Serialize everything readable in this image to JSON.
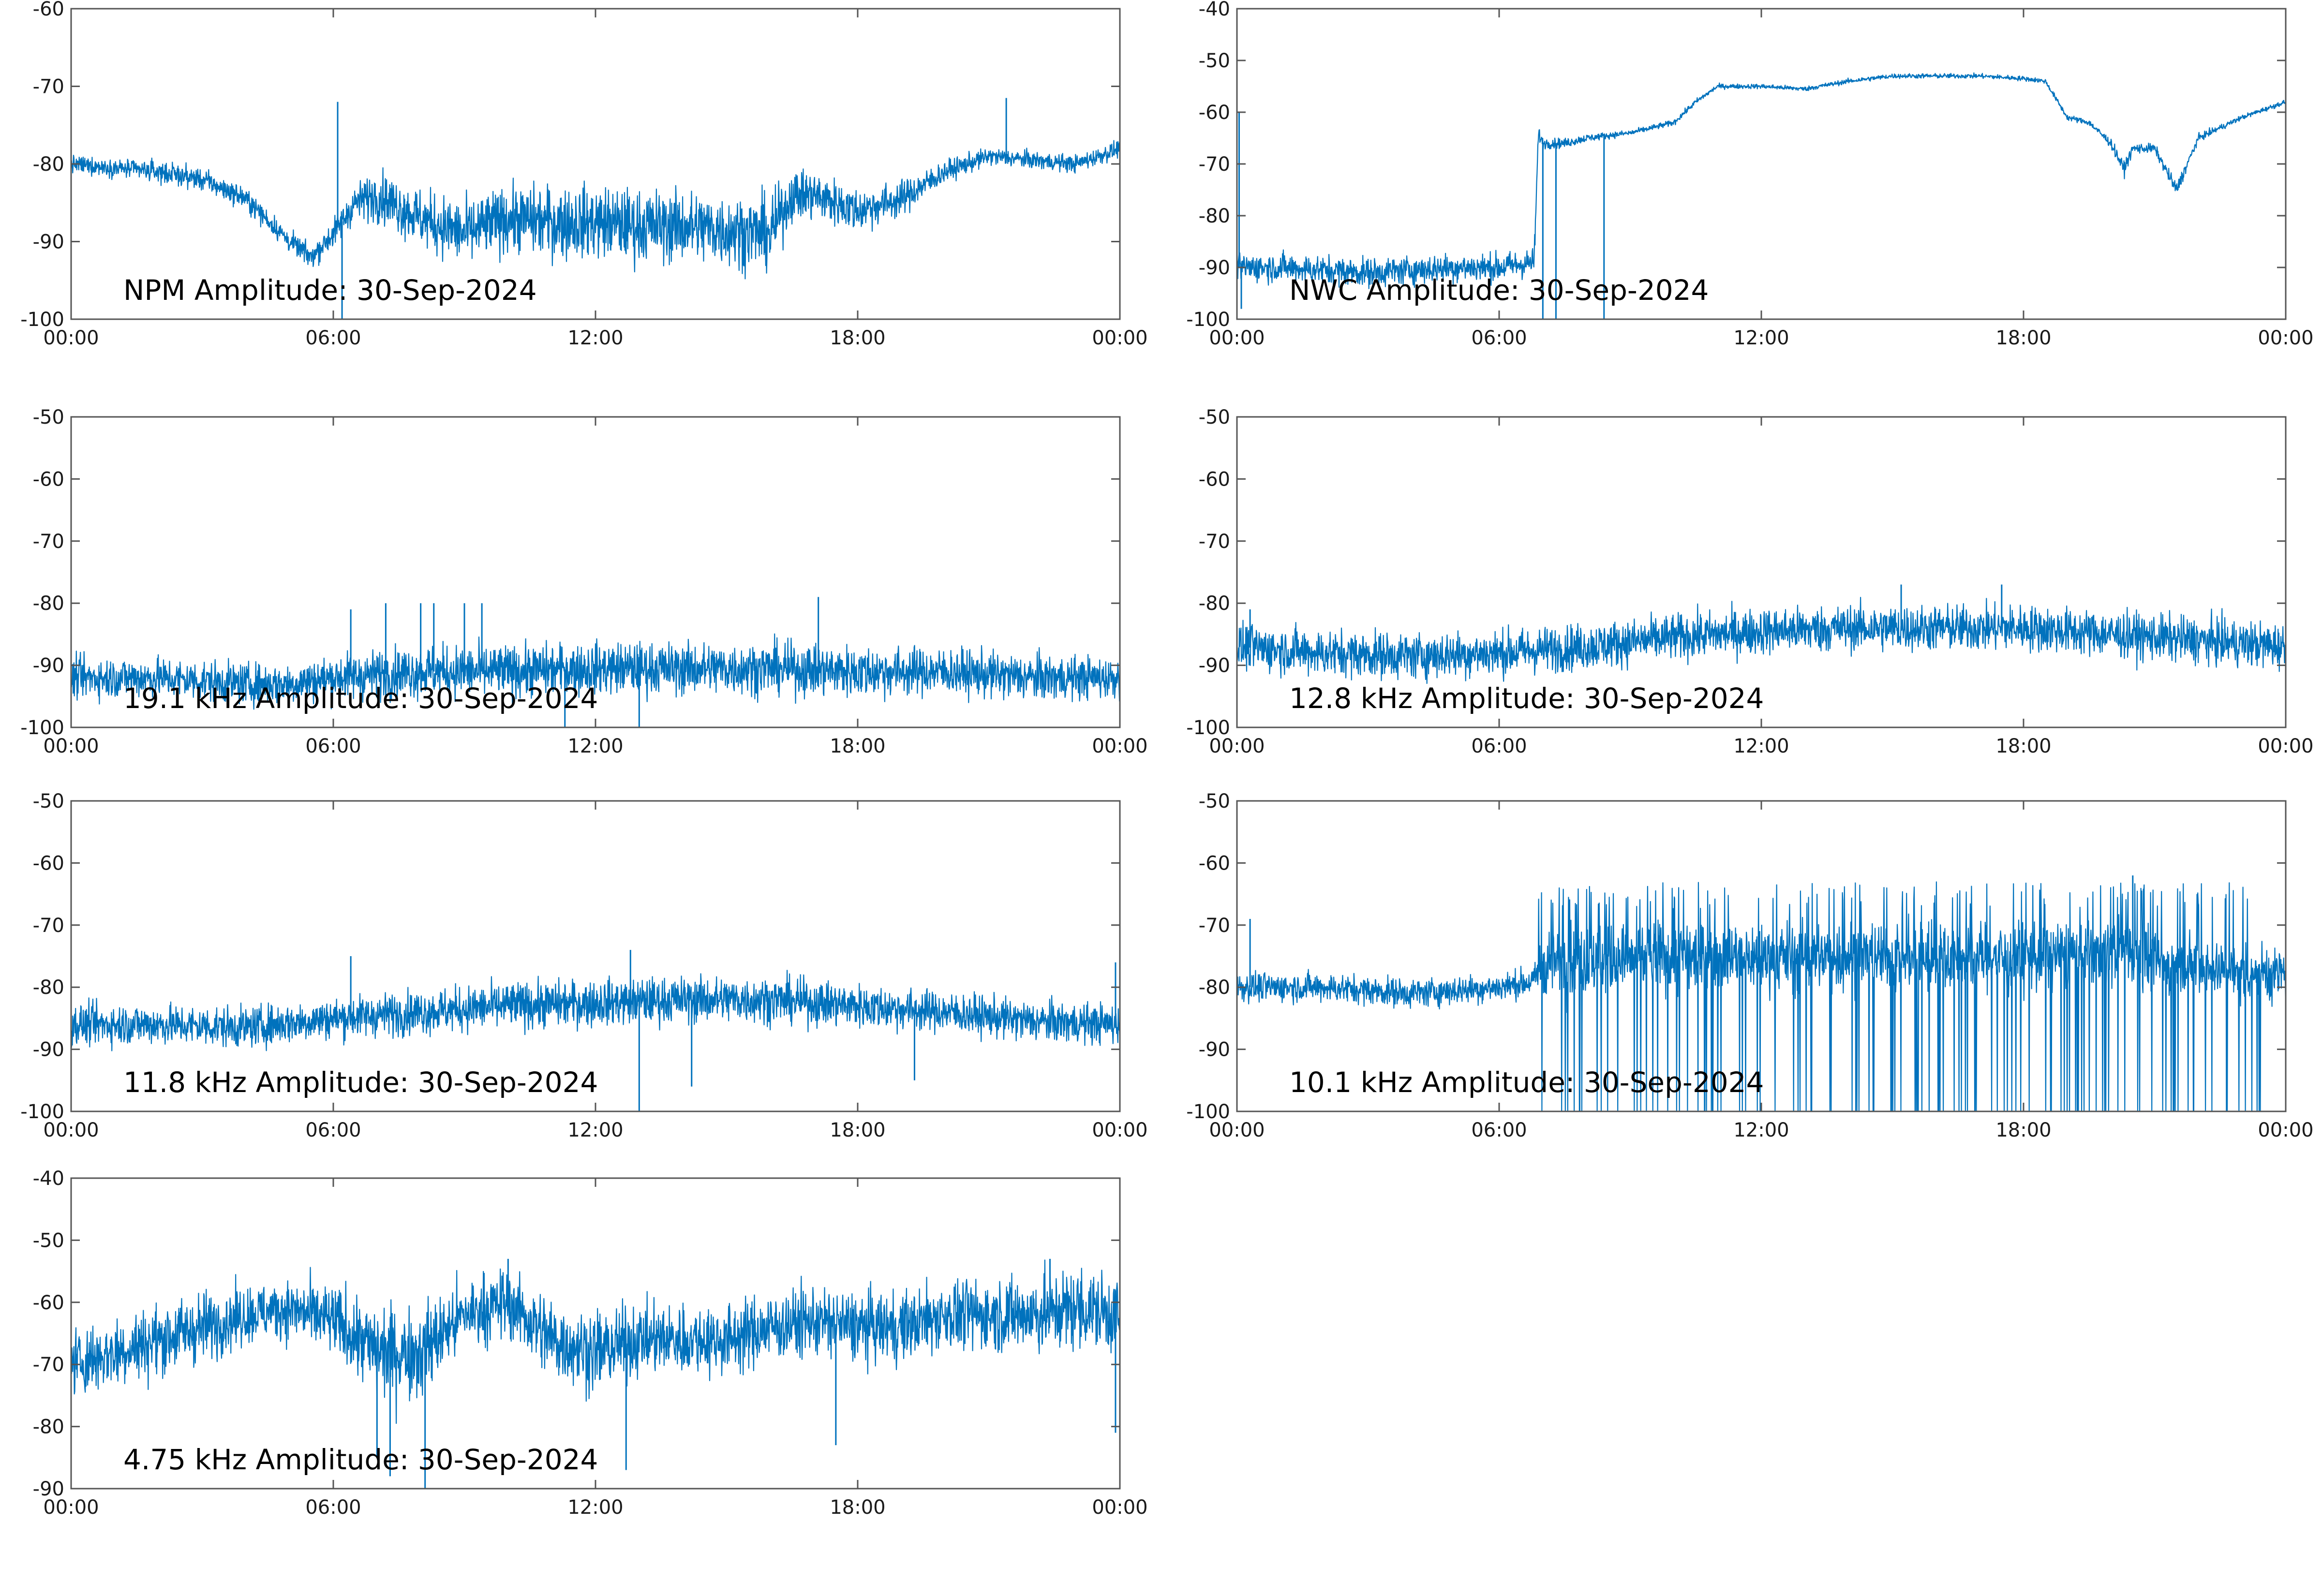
{
  "chart_data": [
    {
      "type": "line",
      "title": "NPM Amplitude: 30-Sep-2024",
      "xlabel": "",
      "ylabel": "",
      "xlim": [
        0,
        24
      ],
      "ylim": [
        -100,
        -60
      ],
      "xticks": [
        0,
        6,
        12,
        18,
        24
      ],
      "xtick_labels": [
        "00:00",
        "06:00",
        "12:00",
        "18:00",
        "00:00"
      ],
      "yticks": [
        -100,
        -90,
        -80,
        -70,
        -60
      ],
      "ytick_labels": [
        "-100",
        "-90",
        "-80",
        "-70",
        "-60"
      ],
      "grid": false,
      "color": "#0072bd",
      "series": [
        {
          "x": [
            0,
            1,
            2,
            3,
            4,
            5,
            5.5,
            6,
            6.5,
            7,
            8,
            9,
            10,
            11,
            12,
            13,
            14,
            15,
            16,
            16.5,
            17,
            18,
            19,
            20,
            21,
            22,
            23,
            24
          ],
          "y": [
            -80,
            -80.5,
            -81,
            -82,
            -84.5,
            -90,
            -92,
            -89,
            -85,
            -84,
            -87,
            -89,
            -87,
            -87.5,
            -87.5,
            -88,
            -88,
            -88.5,
            -89,
            -84,
            -84,
            -86,
            -84.5,
            -81,
            -79,
            -79.5,
            -80,
            -78
          ],
          "noise": [
            1.2,
            1.2,
            1.5,
            1.5,
            1.5,
            1.5,
            1.5,
            2,
            2.5,
            3.5,
            4,
            4.5,
            4.5,
            5,
            5,
            5,
            5,
            5,
            5,
            3.5,
            3.5,
            3,
            2.5,
            1.5,
            1.2,
            1.2,
            1.2,
            1.2
          ],
          "spikes": [
            [
              6.1,
              -72
            ],
            [
              6.2,
              -100
            ],
            [
              21.4,
              -71.5
            ]
          ]
        }
      ]
    },
    {
      "type": "line",
      "title": "NWC Amplitude: 30-Sep-2024",
      "xlabel": "",
      "ylabel": "",
      "xlim": [
        0,
        24
      ],
      "ylim": [
        -100,
        -40
      ],
      "xticks": [
        0,
        6,
        12,
        18,
        24
      ],
      "xtick_labels": [
        "00:00",
        "06:00",
        "12:00",
        "18:00",
        "00:00"
      ],
      "yticks": [
        -100,
        -90,
        -80,
        -70,
        -60,
        -50,
        -40
      ],
      "ytick_labels": [
        "-100",
        "-90",
        "-80",
        "-70",
        "-60",
        "-50",
        "-40"
      ],
      "grid": false,
      "color": "#0072bd",
      "series": [
        {
          "x": [
            0,
            1,
            2,
            3,
            4,
            5,
            6,
            6.8,
            6.9,
            7,
            7.5,
            8,
            9,
            10,
            10.5,
            11,
            12,
            13,
            14,
            15,
            16,
            17,
            18,
            18.5,
            19,
            19.5,
            20,
            20.3,
            20.5,
            21,
            21.5,
            22,
            23,
            24
          ],
          "y": [
            -90,
            -90,
            -90.5,
            -91,
            -90.5,
            -90,
            -90,
            -89,
            -64,
            -66,
            -66,
            -65,
            -64,
            -62,
            -58,
            -55,
            -55,
            -55.5,
            -54,
            -53,
            -53,
            -53,
            -53.5,
            -54,
            -61,
            -62,
            -66,
            -71,
            -67,
            -67,
            -75,
            -65,
            -61,
            -58
          ],
          "noise": [
            3,
            3,
            3,
            3,
            3,
            3,
            3,
            3,
            1.5,
            1.2,
            1,
            0.8,
            0.6,
            0.6,
            0.6,
            0.5,
            0.5,
            0.5,
            0.5,
            0.5,
            0.5,
            0.5,
            0.5,
            0.5,
            0.6,
            0.6,
            1,
            1.5,
            1,
            1,
            1.5,
            0.8,
            0.5,
            0.5
          ],
          "spikes": [
            [
              0.05,
              -60
            ],
            [
              0.1,
              -98
            ],
            [
              7.0,
              -100
            ],
            [
              7.3,
              -100
            ],
            [
              8.4,
              -100
            ]
          ]
        }
      ]
    },
    {
      "type": "line",
      "title": "19.1 kHz Amplitude: 30-Sep-2024",
      "xlabel": "",
      "ylabel": "",
      "xlim": [
        0,
        24
      ],
      "ylim": [
        -100,
        -50
      ],
      "xticks": [
        0,
        6,
        12,
        18,
        24
      ],
      "xtick_labels": [
        "00:00",
        "06:00",
        "12:00",
        "18:00",
        "00:00"
      ],
      "yticks": [
        -100,
        -90,
        -80,
        -70,
        -60,
        -50
      ],
      "ytick_labels": [
        "-100",
        "-90",
        "-80",
        "-70",
        "-60",
        "-50"
      ],
      "grid": false,
      "color": "#0072bd",
      "series": [
        {
          "x": [
            0,
            2,
            4,
            5,
            6,
            8,
            10,
            12,
            14,
            16,
            18,
            20,
            22,
            24
          ],
          "y": [
            -92,
            -92,
            -93,
            -93,
            -92,
            -91,
            -91,
            -90.5,
            -90.5,
            -90.5,
            -91,
            -91,
            -92,
            -92
          ],
          "noise": [
            3.5,
            3.5,
            3.5,
            3.5,
            4,
            4.5,
            4.5,
            4.5,
            4.5,
            4.5,
            4.5,
            4,
            4,
            3.5
          ],
          "spikes": [
            [
              6.4,
              -81
            ],
            [
              7.2,
              -80
            ],
            [
              8,
              -80
            ],
            [
              8.3,
              -80
            ],
            [
              9,
              -80
            ],
            [
              9.4,
              -80
            ],
            [
              17.1,
              -79
            ],
            [
              13,
              -100
            ],
            [
              11.3,
              -100
            ]
          ]
        }
      ]
    },
    {
      "type": "line",
      "title": "12.8 kHz Amplitude: 30-Sep-2024",
      "xlabel": "",
      "ylabel": "",
      "xlim": [
        0,
        24
      ],
      "ylim": [
        -100,
        -50
      ],
      "xticks": [
        0,
        6,
        12,
        18,
        24
      ],
      "xtick_labels": [
        "00:00",
        "06:00",
        "12:00",
        "18:00",
        "00:00"
      ],
      "yticks": [
        -100,
        -90,
        -80,
        -70,
        -60,
        -50
      ],
      "ytick_labels": [
        "-100",
        "-90",
        "-80",
        "-70",
        "-60",
        "-50"
      ],
      "grid": false,
      "color": "#0072bd",
      "series": [
        {
          "x": [
            0,
            2,
            4,
            6,
            8,
            10,
            12,
            14,
            16,
            18,
            20,
            22,
            24
          ],
          "y": [
            -87,
            -88,
            -88.5,
            -88,
            -87,
            -85.5,
            -84.5,
            -84,
            -84,
            -84,
            -85,
            -86,
            -87
          ],
          "noise": [
            4,
            4,
            4,
            4,
            4,
            4,
            4,
            4,
            4,
            4,
            4,
            4,
            4
          ],
          "spikes": [
            [
              0.3,
              -81
            ],
            [
              15.2,
              -77
            ],
            [
              17.5,
              -77
            ]
          ]
        }
      ]
    },
    {
      "type": "line",
      "title": "11.8 kHz Amplitude: 30-Sep-2024",
      "xlabel": "",
      "ylabel": "",
      "xlim": [
        0,
        24
      ],
      "ylim": [
        -100,
        -50
      ],
      "xticks": [
        0,
        6,
        12,
        18,
        24
      ],
      "xtick_labels": [
        "00:00",
        "06:00",
        "12:00",
        "18:00",
        "00:00"
      ],
      "yticks": [
        -100,
        -90,
        -80,
        -70,
        -60,
        -50
      ],
      "ytick_labels": [
        "-100",
        "-90",
        "-80",
        "-70",
        "-60",
        "-50"
      ],
      "grid": false,
      "color": "#0072bd",
      "series": [
        {
          "x": [
            0,
            2,
            4,
            6,
            8,
            10,
            12,
            14,
            16,
            18,
            20,
            22,
            24
          ],
          "y": [
            -86,
            -86,
            -86.5,
            -85,
            -84,
            -83,
            -82.5,
            -82,
            -82,
            -83,
            -84,
            -85.5,
            -86
          ],
          "noise": [
            3.5,
            3.5,
            3.5,
            3.5,
            3.8,
            4,
            4,
            4,
            4,
            3.8,
            3.5,
            3.5,
            3.5
          ],
          "spikes": [
            [
              12.8,
              -74
            ],
            [
              13,
              -100
            ],
            [
              14.2,
              -96
            ],
            [
              19.3,
              -95
            ],
            [
              6.4,
              -75
            ],
            [
              23.9,
              -76
            ]
          ]
        }
      ]
    },
    {
      "type": "line",
      "title": "10.1 kHz Amplitude: 30-Sep-2024",
      "xlabel": "",
      "ylabel": "",
      "xlim": [
        0,
        24
      ],
      "ylim": [
        -100,
        -50
      ],
      "xticks": [
        0,
        6,
        12,
        18,
        24
      ],
      "xtick_labels": [
        "00:00",
        "06:00",
        "12:00",
        "18:00",
        "00:00"
      ],
      "yticks": [
        -100,
        -90,
        -80,
        -70,
        -60,
        -50
      ],
      "ytick_labels": [
        "-100",
        "-90",
        "-80",
        "-70",
        "-60",
        "-50"
      ],
      "grid": false,
      "color": "#0072bd",
      "series": [
        {
          "x": [
            0,
            2,
            4,
            6,
            6.8,
            7,
            10,
            14,
            18,
            20.5,
            21,
            22,
            24
          ],
          "y": [
            -80,
            -80,
            -81,
            -80,
            -79,
            -76,
            -75,
            -75,
            -75,
            -74,
            -76,
            -77,
            -78
          ],
          "noise": [
            2.5,
            2.5,
            2.5,
            2.5,
            2.5,
            6,
            6,
            6,
            6,
            6,
            5,
            5,
            5
          ],
          "bursts": {
            "start": 6.9,
            "end": 23.5,
            "low": -100,
            "high": -63
          },
          "spikes": [
            [
              0.3,
              -69
            ],
            [
              20.5,
              -62
            ]
          ]
        }
      ]
    },
    {
      "type": "line",
      "title": "4.75 kHz Amplitude: 30-Sep-2024",
      "xlabel": "",
      "ylabel": "",
      "xlim": [
        0,
        24
      ],
      "ylim": [
        -90,
        -40
      ],
      "xticks": [
        0,
        6,
        12,
        18,
        24
      ],
      "xtick_labels": [
        "00:00",
        "06:00",
        "12:00",
        "18:00",
        "00:00"
      ],
      "yticks": [
        -90,
        -80,
        -70,
        -60,
        -50,
        -40
      ],
      "ytick_labels": [
        "-90",
        "-80",
        "-70",
        "-60",
        "-50",
        "-40"
      ],
      "grid": false,
      "color": "#0072bd",
      "series": [
        {
          "x": [
            0,
            1,
            2,
            3,
            4,
            5,
            6,
            7,
            8,
            9,
            10,
            11,
            12,
            13,
            14,
            15,
            16,
            17,
            18,
            19,
            20,
            21,
            22,
            23,
            24
          ],
          "y": [
            -70,
            -68,
            -66,
            -64,
            -62,
            -61,
            -63,
            -68,
            -68,
            -62,
            -60,
            -66,
            -68,
            -66,
            -66,
            -66,
            -64,
            -63,
            -64,
            -64,
            -62,
            -62,
            -62,
            -61,
            -62
          ],
          "noise": [
            6,
            6,
            6,
            6,
            5,
            5,
            6,
            8,
            8,
            6,
            6,
            7,
            7,
            6,
            6,
            6,
            6,
            6,
            6,
            6,
            6,
            6,
            7,
            7,
            7
          ],
          "spikes": [
            [
              7,
              -85
            ],
            [
              7.3,
              -88
            ],
            [
              8.1,
              -90
            ],
            [
              12.7,
              -87
            ],
            [
              17.5,
              -83
            ],
            [
              23.9,
              -81
            ],
            [
              10,
              -53
            ],
            [
              22.4,
              -53
            ]
          ]
        }
      ]
    }
  ]
}
